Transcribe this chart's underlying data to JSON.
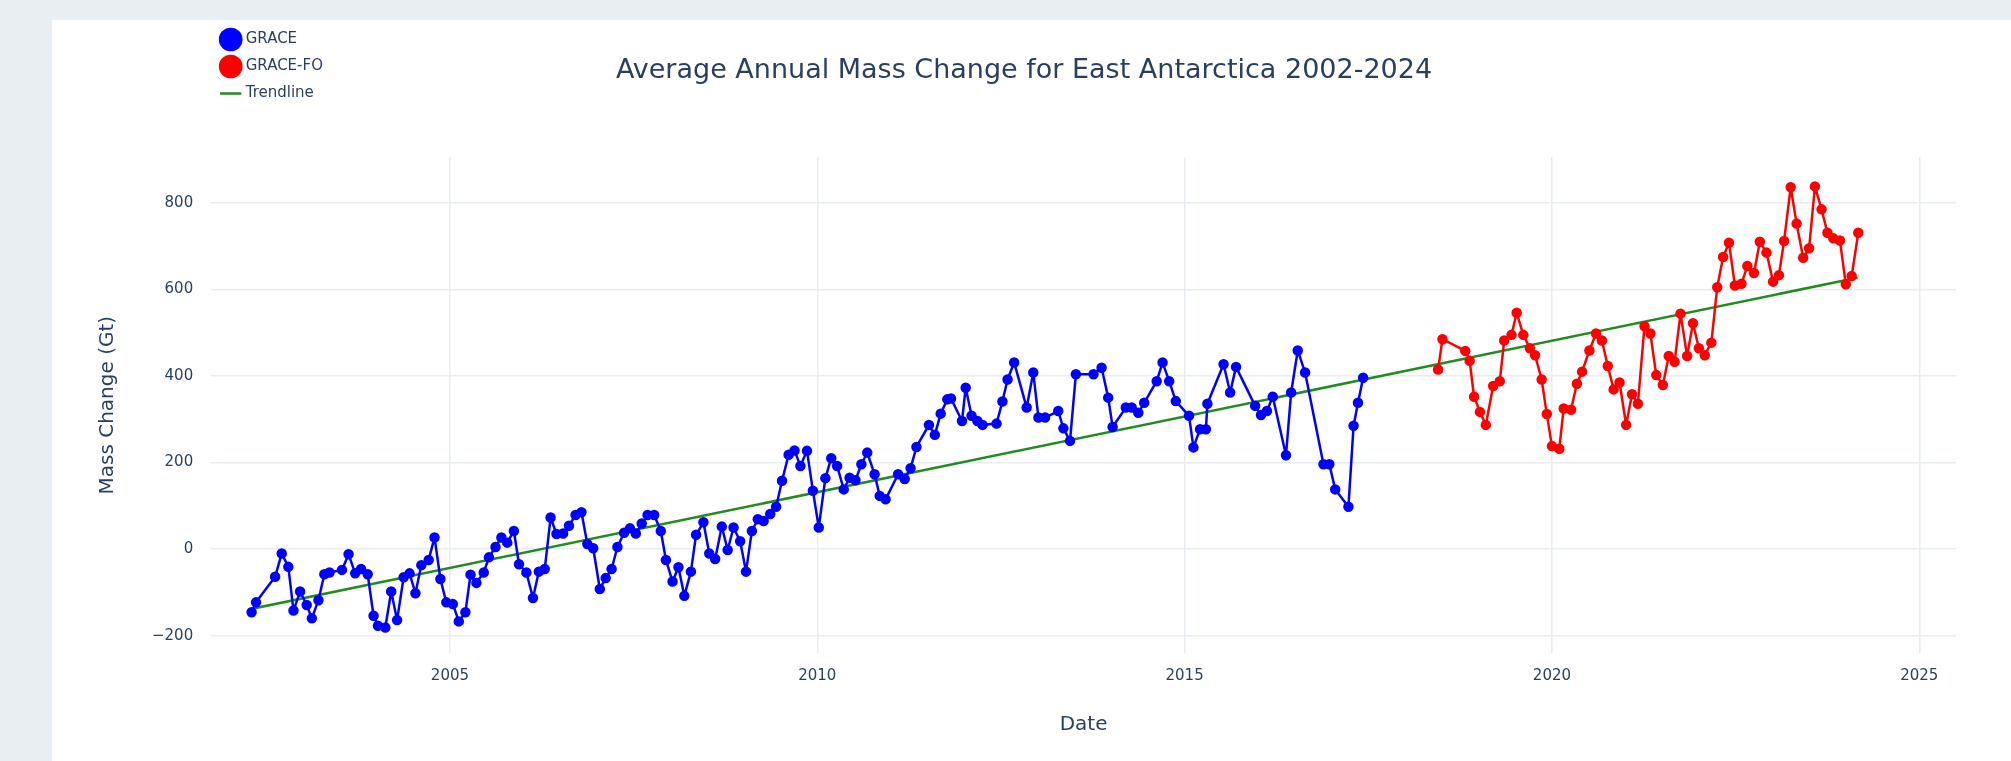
{
  "chart_data": {
    "type": "line",
    "title": "Average Annual Mass Change for East Antarctica 2002-2024",
    "xlabel": "Date",
    "ylabel": "Mass Change (Gt)",
    "xlim": [
      2001.75,
      2025.5
    ],
    "xticks": [
      2005,
      2010,
      2015,
      2020,
      2025
    ],
    "ylim": [
      -240,
      905
    ],
    "yticks": [
      {
        "value": -200,
        "label": "−200"
      },
      0,
      200,
      400,
      600,
      800
    ],
    "grid": true,
    "legend": "top left",
    "marker": "circle",
    "line_style": "solid",
    "series": [
      {
        "name": "GRACE",
        "color": "#0000ff",
        "x": [
          2002.3,
          2002.36,
          2002.62,
          2002.71,
          2002.8,
          2002.87,
          2002.96,
          2003.05,
          2003.12,
          2003.21,
          2003.29,
          2003.36,
          2003.53,
          2003.62,
          2003.71,
          2003.79,
          2003.88,
          2003.96,
          2004.02,
          2004.12,
          2004.2,
          2004.28,
          2004.37,
          2004.45,
          2004.53,
          2004.61,
          2004.71,
          2004.79,
          2004.87,
          2004.95,
          2005.04,
          2005.12,
          2005.21,
          2005.28,
          2005.36,
          2005.46,
          2005.53,
          2005.62,
          2005.7,
          2005.78,
          2005.87,
          2005.94,
          2006.04,
          2006.13,
          2006.21,
          2006.29,
          2006.37,
          2006.45,
          2006.54,
          2006.62,
          2006.71,
          2006.79,
          2006.87,
          2006.95,
          2007.04,
          2007.12,
          2007.2,
          2007.28,
          2007.37,
          2007.45,
          2007.53,
          2007.61,
          2007.69,
          2007.78,
          2007.87,
          2007.94,
          2008.03,
          2008.11,
          2008.19,
          2008.28,
          2008.35,
          2008.45,
          2008.53,
          2008.61,
          2008.7,
          2008.78,
          2008.86,
          2008.95,
          2009.03,
          2009.11,
          2009.19,
          2009.27,
          2009.36,
          2009.44,
          2009.52,
          2009.61,
          2009.69,
          2009.77,
          2009.86,
          2009.94,
          2010.02,
          2010.11,
          2010.19,
          2010.27,
          2010.36,
          2010.44,
          2010.52,
          2010.6,
          2010.68,
          2010.78,
          2010.85,
          2010.93,
          2011.1,
          2011.19,
          2011.27,
          2011.35,
          2011.52,
          2011.6,
          2011.68,
          2011.77,
          2011.82,
          2011.97,
          2012.02,
          2012.1,
          2012.18,
          2012.25,
          2012.44,
          2012.52,
          2012.59,
          2012.68,
          2012.85,
          2012.94,
          2013.01,
          2013.1,
          2013.28,
          2013.35,
          2013.44,
          2013.52,
          2013.76,
          2013.87,
          2013.96,
          2014.02,
          2014.2,
          2014.28,
          2014.37,
          2014.45,
          2014.62,
          2014.7,
          2014.79,
          2014.88,
          2015.06,
          2015.12,
          2015.21,
          2015.29,
          2015.31,
          2015.53,
          2015.62,
          2015.7,
          2015.96,
          2016.04,
          2016.12,
          2016.2,
          2016.38,
          2016.45,
          2016.54,
          2016.64,
          2016.89,
          2016.97,
          2017.05,
          2017.23,
          2017.3,
          2017.36,
          2017.43
        ],
        "values": [
          -146,
          -123,
          -64,
          -10,
          -41,
          -142,
          -98,
          -129,
          -160,
          -118,
          -58,
          -54,
          -48,
          -12,
          -56,
          -46,
          -58,
          -154,
          -177,
          -181,
          -98,
          -164,
          -65,
          -56,
          -102,
          -37,
          -25,
          27,
          -69,
          -123,
          -127,
          -167,
          -146,
          -59,
          -78,
          -54,
          -19,
          5,
          27,
          15,
          42,
          -35,
          -54,
          -113,
          -52,
          -46,
          73,
          35,
          36,
          54,
          79,
          85,
          12,
          2,
          -92,
          -67,
          -46,
          5,
          38,
          48,
          36,
          59,
          79,
          79,
          42,
          -25,
          -75,
          -42,
          -108,
          -52,
          33,
          62,
          -10,
          -23,
          52,
          -2,
          50,
          18,
          -52,
          42,
          69,
          65,
          81,
          98,
          158,
          218,
          228,
          192,
          227,
          135,
          50,
          164,
          210,
          192,
          138,
          165,
          159,
          196,
          223,
          173,
          123,
          115,
          173,
          162,
          187,
          236,
          287,
          264,
          313,
          346,
          348,
          296,
          373,
          308,
          296,
          287,
          290,
          341,
          392,
          431,
          327,
          408,
          304,
          304,
          319,
          279,
          250,
          404,
          404,
          419,
          350,
          282,
          327,
          327,
          315,
          338,
          388,
          431,
          388,
          342,
          308,
          235,
          277,
          277,
          336,
          427,
          362,
          421,
          331,
          310,
          319,
          352,
          217,
          362,
          459,
          408,
          196,
          196,
          138,
          98,
          285,
          338,
          396
        ]
      },
      {
        "name": "GRACE-FO",
        "color": "#ff0000",
        "x": [
          2018.45,
          2018.51,
          2018.82,
          2018.88,
          2018.94,
          2019.02,
          2019.1,
          2019.2,
          2019.29,
          2019.35,
          2019.45,
          2019.52,
          2019.61,
          2019.7,
          2019.77,
          2019.86,
          2019.93,
          2020.0,
          2020.1,
          2020.16,
          2020.26,
          2020.34,
          2020.41,
          2020.51,
          2020.6,
          2020.68,
          2020.76,
          2020.84,
          2020.92,
          2021.01,
          2021.09,
          2021.17,
          2021.26,
          2021.34,
          2021.42,
          2021.51,
          2021.59,
          2021.67,
          2021.75,
          2021.84,
          2021.92,
          2022.0,
          2022.08,
          2022.17,
          2022.25,
          2022.33,
          2022.41,
          2022.49,
          2022.58,
          2022.66,
          2022.75,
          2022.83,
          2022.92,
          2023.01,
          2023.09,
          2023.16,
          2023.25,
          2023.33,
          2023.42,
          2023.5,
          2023.58,
          2023.67,
          2023.75,
          2023.83,
          2023.92,
          2024.0,
          2024.08,
          2024.17
        ],
        "values": [
          415,
          485,
          458,
          435,
          352,
          317,
          287,
          377,
          388,
          482,
          495,
          546,
          495,
          464,
          448,
          392,
          312,
          238,
          232,
          325,
          322,
          382,
          410,
          459,
          498,
          482,
          423,
          369,
          385,
          287,
          358,
          336,
          515,
          498,
          402,
          379,
          446,
          433,
          544,
          446,
          522,
          464,
          448,
          477,
          605,
          675,
          708,
          609,
          613,
          654,
          638,
          710,
          685,
          618,
          633,
          712,
          836,
          752,
          673,
          695,
          838,
          785,
          731,
          718,
          713,
          612,
          631,
          731
        ]
      },
      {
        "name": "Trendline",
        "color": "#228b22",
        "marker": "none",
        "x": [
          2002.3,
          2024.16
        ],
        "values": [
          -138,
          627
        ]
      }
    ]
  }
}
